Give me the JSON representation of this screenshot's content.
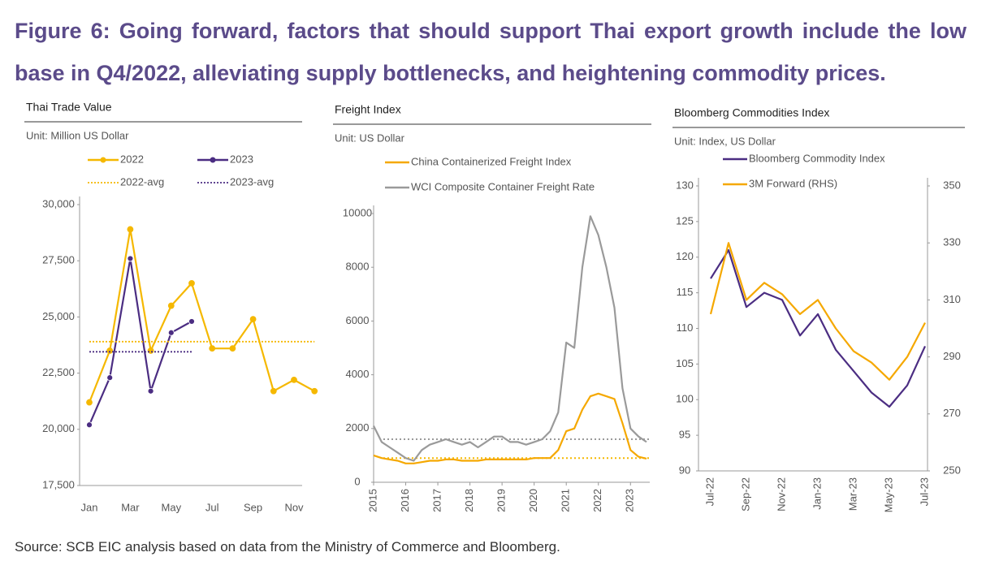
{
  "title": "Figure 6: Going forward, factors that should support Thai export growth include the low base in Q4/2022, alleviating supply bottlenecks, and heightening commodity prices.",
  "source": "Source: SCB EIC analysis based on data from the Ministry of Commerce and Bloomberg.",
  "chart_data": [
    {
      "type": "line",
      "title": "Thai Trade Value",
      "unit": "Unit: Million US Dollar",
      "categories": [
        "Jan",
        null,
        "Mar",
        null,
        "May",
        null,
        "Jul",
        null,
        "Sep",
        null,
        "Nov",
        null
      ],
      "series": [
        {
          "name": "2022",
          "color": "#f5b800",
          "markers": true,
          "values": [
            21200,
            23500,
            28900,
            23500,
            25500,
            26500,
            23600,
            23600,
            24900,
            21700,
            22200,
            21700
          ]
        },
        {
          "name": "2023",
          "color": "#4b2d82",
          "markers": true,
          "values": [
            20200,
            22300,
            27600,
            21700,
            24300,
            24800,
            null,
            null,
            null,
            null,
            null,
            null
          ]
        },
        {
          "name": "2022-avg",
          "color": "#f5b800",
          "style": "dotted",
          "values": [
            23900,
            23900,
            23900,
            23900,
            23900,
            23900,
            23900,
            23900,
            23900,
            23900,
            23900,
            23900
          ]
        },
        {
          "name": "2023-avg",
          "color": "#4b2d82",
          "style": "dotted",
          "values": [
            23450,
            23450,
            23450,
            23450,
            23450,
            23450,
            null,
            null,
            null,
            null,
            null,
            null
          ]
        }
      ],
      "ylim": [
        17500,
        30000
      ],
      "yticks": [
        {
          "value": 17500,
          "label": "17,500"
        },
        {
          "value": 20000,
          "label": "20,000"
        },
        {
          "value": 22500,
          "label": "22,500"
        },
        {
          "value": 25000,
          "label": "25,000"
        },
        {
          "value": 27500,
          "label": "27,500"
        },
        {
          "value": 30000,
          "label": "30,000"
        }
      ]
    },
    {
      "type": "line",
      "title": "Freight Index",
      "unit": "Unit: US Dollar",
      "x": [
        2015,
        2015.25,
        2015.5,
        2015.75,
        2016,
        2016.25,
        2016.5,
        2016.75,
        2017,
        2017.25,
        2017.5,
        2017.75,
        2018,
        2018.25,
        2018.5,
        2018.75,
        2019,
        2019.25,
        2019.5,
        2019.75,
        2020,
        2020.25,
        2020.5,
        2020.75,
        2021,
        2021.25,
        2021.5,
        2021.75,
        2022,
        2022.25,
        2022.5,
        2022.75,
        2023,
        2023.25,
        2023.5
      ],
      "series": [
        {
          "name": "China Containerized Freight Index",
          "color": "#f5a800",
          "values": [
            1000,
            900,
            850,
            800,
            700,
            700,
            750,
            800,
            800,
            850,
            850,
            800,
            800,
            800,
            850,
            850,
            850,
            850,
            850,
            850,
            900,
            900,
            900,
            1200,
            1900,
            2000,
            2700,
            3200,
            3300,
            3200,
            3100,
            2200,
            1200,
            950,
            880
          ]
        },
        {
          "name": "WCI Composite Container Freight Rate",
          "color": "#9a9a9a",
          "values": [
            2100,
            1500,
            1300,
            1100,
            900,
            800,
            1200,
            1400,
            1500,
            1600,
            1500,
            1400,
            1500,
            1300,
            1500,
            1700,
            1700,
            1500,
            1500,
            1400,
            1500,
            1600,
            1900,
            2600,
            5200,
            5000,
            8000,
            9900,
            9200,
            8000,
            6500,
            3500,
            2000,
            1700,
            1500
          ]
        }
      ],
      "avg_lines": [
        {
          "value": 1600,
          "color": "#9a9a9a"
        },
        {
          "value": 900,
          "color": "#f5b800"
        }
      ],
      "xlim": [
        2015,
        2023.6
      ],
      "xticks": [
        2015,
        2016,
        2017,
        2018,
        2019,
        2020,
        2021,
        2022,
        2023
      ],
      "ylim": [
        0,
        10000
      ],
      "yticks": [
        0,
        2000,
        4000,
        6000,
        8000,
        10000
      ]
    },
    {
      "type": "line",
      "title": "Bloomberg Commodities Index",
      "unit": "Unit: Index, US Dollar",
      "categories": [
        "Jul-22",
        null,
        "Sep-22",
        null,
        "Nov-22",
        null,
        "Jan-23",
        null,
        "Mar-23",
        null,
        "May-23",
        null,
        "Jul-23"
      ],
      "series": [
        {
          "name": "Bloomberg Commodity Index",
          "color": "#4b2d82",
          "values": [
            117,
            121,
            113,
            115,
            114,
            109,
            112,
            107,
            104,
            101,
            99,
            102,
            107.5
          ]
        },
        {
          "name": "3M Forward (RHS)",
          "color": "#f5a800",
          "axis": "y2",
          "values": [
            305,
            330,
            310,
            316,
            312,
            305,
            310,
            300,
            292,
            288,
            282,
            290,
            302
          ]
        }
      ],
      "ylim": [
        90,
        130
      ],
      "yticks": [
        90,
        95,
        100,
        105,
        110,
        115,
        120,
        125,
        130
      ],
      "y2lim": [
        250,
        350
      ],
      "y2ticks": [
        250,
        270,
        290,
        310,
        330,
        350
      ]
    }
  ]
}
